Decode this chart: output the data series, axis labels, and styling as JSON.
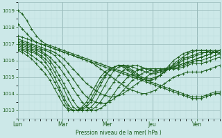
{
  "bg_color": "#cce8e8",
  "grid_color_major": "#99bbbb",
  "grid_color_minor": "#bbdddd",
  "line_color": "#1a5c1a",
  "marker": "+",
  "xlabel": "Pression niveau de la mer( hPa )",
  "ylim": [
    1012.5,
    1019.5
  ],
  "yticks": [
    1013,
    1014,
    1015,
    1016,
    1017,
    1018,
    1019
  ],
  "day_labels": [
    "Lun",
    "Mar",
    "Mer",
    "Jeu",
    "Ven"
  ],
  "day_positions": [
    0,
    48,
    96,
    144,
    192
  ],
  "total_hours": 216,
  "series": [
    [
      1019.0,
      1018.8,
      1018.4,
      1017.9,
      1017.5,
      1017.2,
      1017.0,
      1016.9,
      1016.8,
      1016.7,
      1016.6,
      1016.5,
      1016.4,
      1016.3,
      1016.2,
      1016.1,
      1016.0,
      1015.9,
      1015.8,
      1015.7,
      1015.6,
      1015.5,
      1015.4,
      1015.3,
      1015.2,
      1015.1,
      1015.0,
      1014.9,
      1014.8,
      1014.7,
      1014.6,
      1014.5,
      1014.4,
      1014.3,
      1014.2,
      1014.1,
      1014.0,
      1013.9,
      1013.8,
      1013.8,
      1013.8,
      1013.9,
      1014.0,
      1014.1,
      1014.1
    ],
    [
      1018.2,
      1017.9,
      1017.6,
      1017.3,
      1017.1,
      1017.0,
      1016.9,
      1016.8,
      1016.7,
      1016.6,
      1016.5,
      1016.4,
      1016.3,
      1016.2,
      1016.1,
      1016.0,
      1015.9,
      1015.8,
      1015.7,
      1015.6,
      1015.5,
      1015.4,
      1015.3,
      1015.2,
      1015.1,
      1015.0,
      1014.9,
      1014.8,
      1014.7,
      1014.6,
      1014.5,
      1014.4,
      1014.3,
      1014.2,
      1014.1,
      1014.0,
      1013.9,
      1013.8,
      1013.7,
      1013.7,
      1013.7,
      1013.8,
      1013.9,
      1014.0,
      1014.0
    ],
    [
      1017.5,
      1017.4,
      1017.3,
      1017.2,
      1017.1,
      1017.0,
      1016.9,
      1016.8,
      1016.7,
      1016.6,
      1016.5,
      1016.4,
      1016.3,
      1016.2,
      1016.1,
      1016.0,
      1015.9,
      1015.7,
      1015.5,
      1015.3,
      1015.1,
      1014.9,
      1014.7,
      1014.5,
      1014.3,
      1014.2,
      1014.1,
      1014.0,
      1014.0,
      1014.1,
      1014.2,
      1014.4,
      1014.6,
      1014.8,
      1015.0,
      1015.1,
      1015.2,
      1015.3,
      1015.3,
      1015.3,
      1015.3,
      1015.4,
      1015.5,
      1015.6,
      1015.7
    ],
    [
      1017.3,
      1017.2,
      1017.1,
      1017.0,
      1016.9,
      1016.8,
      1016.7,
      1016.6,
      1016.5,
      1016.3,
      1016.1,
      1015.8,
      1015.5,
      1015.2,
      1014.9,
      1014.6,
      1014.4,
      1014.2,
      1014.0,
      1013.9,
      1013.8,
      1013.8,
      1013.9,
      1014.0,
      1014.2,
      1014.4,
      1014.6,
      1014.8,
      1015.0,
      1015.2,
      1015.3,
      1015.4,
      1015.5,
      1015.5,
      1015.5,
      1015.5,
      1015.6,
      1015.7,
      1015.8,
      1015.8,
      1015.8,
      1015.9,
      1016.0,
      1016.1,
      1016.2
    ],
    [
      1017.2,
      1017.1,
      1017.0,
      1016.9,
      1016.8,
      1016.7,
      1016.6,
      1016.5,
      1016.3,
      1016.0,
      1015.7,
      1015.3,
      1014.9,
      1014.5,
      1014.1,
      1013.8,
      1013.6,
      1013.5,
      1013.4,
      1013.4,
      1013.5,
      1013.7,
      1013.9,
      1014.2,
      1014.5,
      1014.8,
      1015.0,
      1015.2,
      1015.3,
      1015.4,
      1015.4,
      1015.4,
      1015.5,
      1015.5,
      1015.5,
      1015.6,
      1015.7,
      1015.8,
      1015.9,
      1016.0,
      1016.0,
      1016.1,
      1016.2,
      1016.3,
      1016.4
    ],
    [
      1017.1,
      1017.0,
      1016.9,
      1016.8,
      1016.7,
      1016.6,
      1016.4,
      1016.2,
      1015.9,
      1015.6,
      1015.2,
      1014.8,
      1014.3,
      1013.9,
      1013.5,
      1013.2,
      1013.0,
      1013.0,
      1013.1,
      1013.3,
      1013.6,
      1014.0,
      1014.4,
      1014.7,
      1015.0,
      1015.2,
      1015.4,
      1015.5,
      1015.5,
      1015.5,
      1015.5,
      1015.5,
      1015.5,
      1015.6,
      1015.6,
      1015.7,
      1015.8,
      1015.9,
      1016.0,
      1016.1,
      1016.2,
      1016.3,
      1016.4,
      1016.5,
      1016.6
    ],
    [
      1017.0,
      1016.9,
      1016.8,
      1016.7,
      1016.6,
      1016.5,
      1016.3,
      1016.0,
      1015.6,
      1015.1,
      1014.6,
      1014.1,
      1013.6,
      1013.2,
      1013.0,
      1013.0,
      1013.0,
      1013.2,
      1013.5,
      1013.9,
      1014.3,
      1014.7,
      1015.1,
      1015.4,
      1015.6,
      1015.7,
      1015.7,
      1015.6,
      1015.5,
      1015.4,
      1015.3,
      1015.3,
      1015.4,
      1015.5,
      1015.6,
      1015.7,
      1015.8,
      1015.9,
      1016.0,
      1016.1,
      1016.2,
      1016.3,
      1016.4,
      1016.5,
      1016.6
    ],
    [
      1016.9,
      1016.8,
      1016.7,
      1016.6,
      1016.5,
      1016.3,
      1016.1,
      1015.8,
      1015.3,
      1014.8,
      1014.3,
      1013.7,
      1013.2,
      1013.0,
      1013.0,
      1013.0,
      1013.2,
      1013.5,
      1014.0,
      1014.5,
      1015.0,
      1015.4,
      1015.6,
      1015.7,
      1015.7,
      1015.6,
      1015.5,
      1015.4,
      1015.3,
      1015.2,
      1015.2,
      1015.3,
      1015.4,
      1015.5,
      1015.6,
      1015.8,
      1016.0,
      1016.1,
      1016.2,
      1016.3,
      1016.4,
      1016.5,
      1016.5,
      1016.5,
      1016.5
    ],
    [
      1016.8,
      1016.7,
      1016.6,
      1016.5,
      1016.4,
      1016.2,
      1015.9,
      1015.5,
      1015.0,
      1014.4,
      1013.8,
      1013.3,
      1013.0,
      1013.0,
      1013.0,
      1013.2,
      1013.5,
      1014.0,
      1014.5,
      1015.0,
      1015.4,
      1015.6,
      1015.7,
      1015.7,
      1015.6,
      1015.4,
      1015.2,
      1015.0,
      1014.9,
      1014.9,
      1015.0,
      1015.1,
      1015.3,
      1015.5,
      1015.7,
      1015.9,
      1016.1,
      1016.2,
      1016.3,
      1016.4,
      1016.5,
      1016.5,
      1016.6,
      1016.6,
      1016.6
    ],
    [
      1016.7,
      1016.6,
      1016.5,
      1016.3,
      1016.1,
      1015.9,
      1015.6,
      1015.2,
      1014.7,
      1014.2,
      1013.6,
      1013.1,
      1013.0,
      1013.0,
      1013.1,
      1013.3,
      1013.7,
      1014.2,
      1014.7,
      1015.1,
      1015.4,
      1015.6,
      1015.7,
      1015.7,
      1015.5,
      1015.3,
      1015.1,
      1014.9,
      1014.8,
      1014.8,
      1014.9,
      1015.1,
      1015.3,
      1015.5,
      1015.8,
      1016.0,
      1016.2,
      1016.4,
      1016.5,
      1016.6,
      1016.6,
      1016.6,
      1016.6,
      1016.5,
      1016.5
    ],
    [
      1016.6,
      1016.5,
      1016.3,
      1016.1,
      1015.8,
      1015.5,
      1015.2,
      1014.8,
      1014.3,
      1013.8,
      1013.3,
      1013.0,
      1013.0,
      1013.0,
      1013.2,
      1013.5,
      1014.0,
      1014.5,
      1015.0,
      1015.3,
      1015.5,
      1015.6,
      1015.7,
      1015.6,
      1015.4,
      1015.2,
      1015.0,
      1014.9,
      1014.8,
      1014.8,
      1014.9,
      1015.1,
      1015.4,
      1015.7,
      1016.0,
      1016.2,
      1016.4,
      1016.5,
      1016.6,
      1016.6,
      1016.6,
      1016.6,
      1016.5,
      1016.5,
      1016.4
    ]
  ]
}
